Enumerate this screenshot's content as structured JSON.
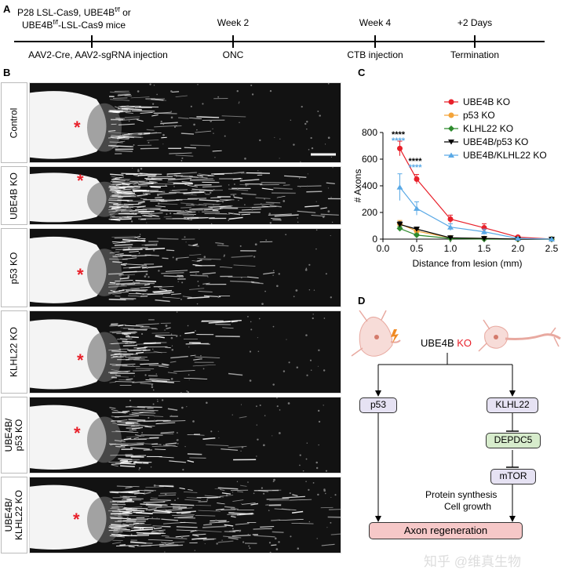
{
  "panel_labels": {
    "a": "A",
    "b": "B",
    "c": "C",
    "d": "D"
  },
  "timeline": {
    "top_line1": "P28 LSL-Cas9, UBE4B",
    "top_line1_sup": "f/f",
    "top_line1_tail": " or",
    "top_line2": "UBE4B",
    "top_line2_sup": "f/f",
    "top_line2_tail": "-LSL-Cas9 mice",
    "week2": "Week 2",
    "week4": "Week 4",
    "plus2": "+2 Days",
    "bottom1": "AAV2-Cre, AAV2-sgRNA injection",
    "bottom2": "ONC",
    "bottom3": "CTB injection",
    "bottom4": "Termination"
  },
  "rows": [
    {
      "label": "Control"
    },
    {
      "label": "UBE4B KO"
    },
    {
      "label": "p53 KO"
    },
    {
      "label": "KLHL22 KO"
    },
    {
      "label": "UBE4B/ p53 KO",
      "l1": "UBE4B/",
      "l2": "p53 KO"
    },
    {
      "label": "UBE4B/ KLHL22 KO",
      "l1": "UBE4B/",
      "l2": "KLHL22 KO"
    }
  ],
  "star": "*",
  "chart_data": {
    "type": "line",
    "xlabel": "Distance from lesion (mm)",
    "ylabel": "# Axons",
    "xlim": [
      0,
      2.5
    ],
    "ylim": [
      0,
      800
    ],
    "xticks": [
      "0.0",
      "0.5",
      "1.0",
      "1.5",
      "2.0",
      "2.5"
    ],
    "yticks": [
      "0",
      "200",
      "400",
      "600",
      "800"
    ],
    "legend_position": "top-right",
    "significance": [
      {
        "x": 0.25,
        "label": "****",
        "color": "#000000"
      },
      {
        "x": 0.25,
        "label": "****",
        "color": "#5aa9e6"
      },
      {
        "x": 0.5,
        "label": "****",
        "color": "#000000"
      },
      {
        "x": 0.5,
        "label": "****",
        "color": "#5aa9e6"
      }
    ],
    "series": [
      {
        "name": "UBE4B KO",
        "color": "#e8202a",
        "marker": "circle",
        "x": [
          0.25,
          0.5,
          1.0,
          1.5,
          2.0,
          2.5
        ],
        "y": [
          680,
          450,
          150,
          85,
          15,
          0
        ],
        "err": [
          55,
          35,
          30,
          30,
          10,
          0
        ]
      },
      {
        "name": "p53 KO",
        "color": "#f4a43a",
        "marker": "circle",
        "x": [
          0.25,
          0.5,
          1.0,
          1.5,
          2.0,
          2.5
        ],
        "y": [
          115,
          60,
          10,
          5,
          0,
          0
        ],
        "err": [
          25,
          15,
          5,
          0,
          0,
          0
        ]
      },
      {
        "name": "KLHL22 KO",
        "color": "#2e8b2e",
        "marker": "diamond",
        "x": [
          0.25,
          0.5,
          1.0,
          1.5,
          2.0,
          2.5
        ],
        "y": [
          80,
          30,
          5,
          0,
          0,
          0
        ],
        "err": [
          15,
          10,
          0,
          0,
          0,
          0
        ]
      },
      {
        "name": "UBE4B/p53 KO",
        "color": "#000000",
        "marker": "triangle-down",
        "x": [
          0.25,
          0.5,
          1.0,
          1.5,
          2.0,
          2.5
        ],
        "y": [
          110,
          75,
          10,
          5,
          0,
          0
        ],
        "err": [
          20,
          15,
          5,
          0,
          0,
          0
        ]
      },
      {
        "name": "UBE4B/KLHL22 KO",
        "color": "#5aa9e6",
        "marker": "triangle-up",
        "x": [
          0.25,
          0.5,
          1.0,
          1.5,
          2.0,
          2.5
        ],
        "y": [
          390,
          230,
          90,
          55,
          5,
          0
        ],
        "err": [
          100,
          50,
          25,
          20,
          0,
          0
        ]
      }
    ]
  },
  "diagram": {
    "ube4b": "UBE4B",
    "ko": "KO",
    "p53": "p53",
    "klhl22": "KLHL22",
    "depdc5": "DEPDC5",
    "mtor": "mTOR",
    "note1": "Protein synthesis",
    "note2": "Cell growth",
    "axon": "Axon regeneration"
  },
  "watermark": "知乎 @维真生物"
}
